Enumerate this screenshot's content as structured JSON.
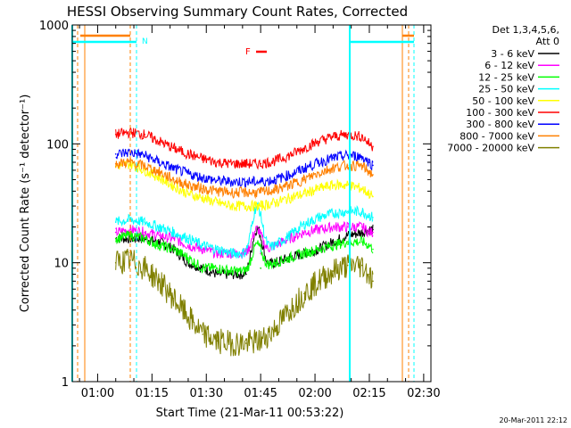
{
  "chart_data": {
    "type": "line",
    "title": "HESSI Observing Summary Count Rates, Corrected",
    "xlabel": "Start Time (21-Mar-11 00:53:22)",
    "ylabel": "Corrected Count Rate (s⁻¹ detector⁻¹)",
    "x_ticks": [
      {
        "label": "01:00",
        "min": 7
      },
      {
        "label": "01:15",
        "min": 22
      },
      {
        "label": "01:30",
        "min": 37
      },
      {
        "label": "01:45",
        "min": 52
      },
      {
        "label": "02:00",
        "min": 67
      },
      {
        "label": "02:15",
        "min": 82
      },
      {
        "label": "02:30",
        "min": 97
      }
    ],
    "xlim_min": [
      0,
      99
    ],
    "y_ticks": [
      {
        "label": "1",
        "value": 1
      },
      {
        "label": "10",
        "value": 10
      },
      {
        "label": "100",
        "value": 100
      },
      {
        "label": "1000",
        "value": 1000
      }
    ],
    "ylim": [
      1,
      1000
    ],
    "log_y": true,
    "legend_header": [
      "Det 1,3,4,5,6,",
      "Att 0"
    ],
    "legend_placement": "right",
    "footer": "20-Mar-2011 22:12",
    "flag_labels": [
      {
        "text": "N",
        "color": "#00ffff"
      },
      {
        "text": "F",
        "color": "#ff0000"
      }
    ],
    "x_minutes": [
      12,
      16,
      20,
      24,
      28,
      32,
      36,
      40,
      44,
      48,
      52,
      56,
      60,
      64,
      68,
      72,
      76,
      80,
      82,
      83
    ],
    "series": [
      {
        "name": "3 - 6 keV",
        "color": "#000000",
        "values": [
          16,
          16,
          16,
          15,
          13,
          10,
          9,
          8,
          8,
          8,
          9,
          10,
          11,
          12,
          13,
          15,
          17,
          18,
          19,
          19
        ]
      },
      {
        "name": "6 - 12 keV",
        "color": "#ff00ff",
        "values": [
          18,
          19,
          18,
          17,
          16,
          14,
          13,
          12,
          12,
          12,
          12,
          14,
          16,
          18,
          19,
          20,
          20,
          20,
          18,
          18
        ]
      },
      {
        "name": "12 - 25 keV",
        "color": "#00ff00",
        "values": [
          16,
          17,
          16,
          14,
          13,
          11,
          9,
          9,
          8.5,
          8.5,
          9,
          10,
          11,
          12,
          13,
          14,
          15,
          15,
          14,
          13
        ]
      },
      {
        "name": "25 - 50 keV",
        "color": "#00ffff",
        "values": [
          22,
          23,
          22,
          20,
          18,
          16,
          14,
          13,
          12,
          12,
          12.5,
          14,
          17,
          21,
          24,
          26,
          27,
          27,
          25,
          24
        ]
      },
      {
        "name": "50 - 100 keV",
        "color": "#ffff00",
        "values": [
          65,
          68,
          60,
          52,
          44,
          38,
          35,
          32,
          30,
          30,
          30,
          32,
          35,
          38,
          42,
          45,
          45,
          42,
          38,
          36
        ]
      },
      {
        "name": "100 - 300 keV",
        "color": "#ff0000",
        "values": [
          120,
          125,
          120,
          105,
          92,
          82,
          75,
          70,
          68,
          68,
          68,
          72,
          80,
          92,
          105,
          115,
          120,
          115,
          100,
          95
        ]
      },
      {
        "name": "300 - 800 keV",
        "color": "#0000ff",
        "values": [
          82,
          85,
          80,
          70,
          62,
          56,
          52,
          49,
          48,
          48,
          48,
          50,
          55,
          62,
          70,
          76,
          80,
          78,
          70,
          66
        ]
      },
      {
        "name": "800 - 7000 keV",
        "color": "#ff8000",
        "values": [
          68,
          70,
          65,
          58,
          50,
          45,
          42,
          40,
          39,
          39,
          39,
          41,
          45,
          50,
          57,
          63,
          66,
          65,
          58,
          55
        ]
      },
      {
        "name": "7000 - 20000 keV",
        "color": "#808000",
        "values": [
          10,
          10.5,
          9,
          7,
          5,
          3.5,
          2.5,
          2.2,
          2.1,
          2.1,
          2.2,
          2.8,
          4,
          5.5,
          7,
          8.5,
          9.5,
          9.5,
          8,
          7
        ]
      }
    ],
    "flare_peak": {
      "min": 51,
      "label_series": "25 - 50 keV"
    }
  }
}
